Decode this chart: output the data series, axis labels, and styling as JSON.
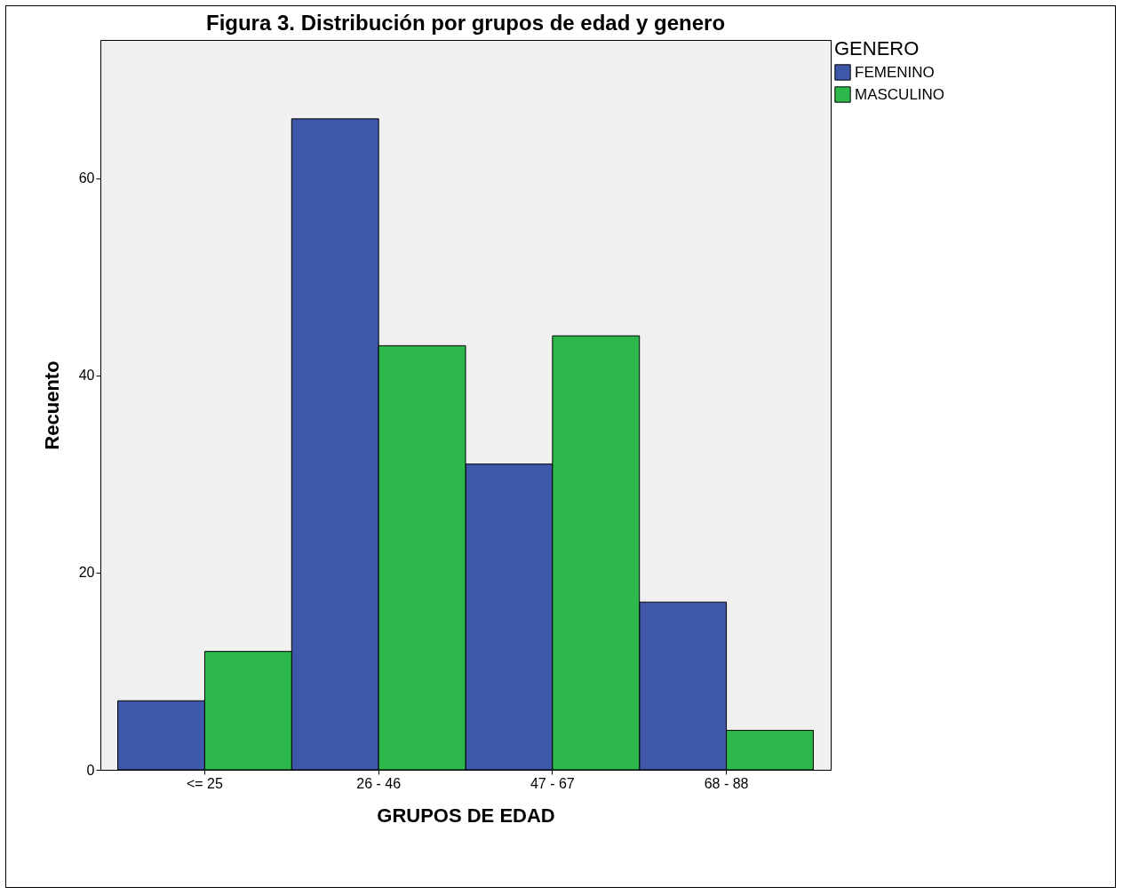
{
  "chart_data": {
    "type": "bar",
    "title": "Figura 3. Distribución por grupos de edad y genero",
    "xlabel": "GRUPOS DE EDAD",
    "ylabel": "Recuento",
    "legend_title": "GENERO",
    "categories": [
      "<= 25",
      "26 - 46",
      "47 - 67",
      "68 - 88"
    ],
    "series": [
      {
        "name": "FEMENINO",
        "color": "#3f57a9",
        "values": [
          7,
          66,
          31,
          17
        ]
      },
      {
        "name": "MASCULINO",
        "color": "#2db84b",
        "values": [
          12,
          43,
          44,
          4
        ]
      }
    ],
    "ylim": [
      0,
      74
    ],
    "yticks": [
      0,
      20,
      40,
      60
    ],
    "grid": false,
    "legend": "top right"
  }
}
